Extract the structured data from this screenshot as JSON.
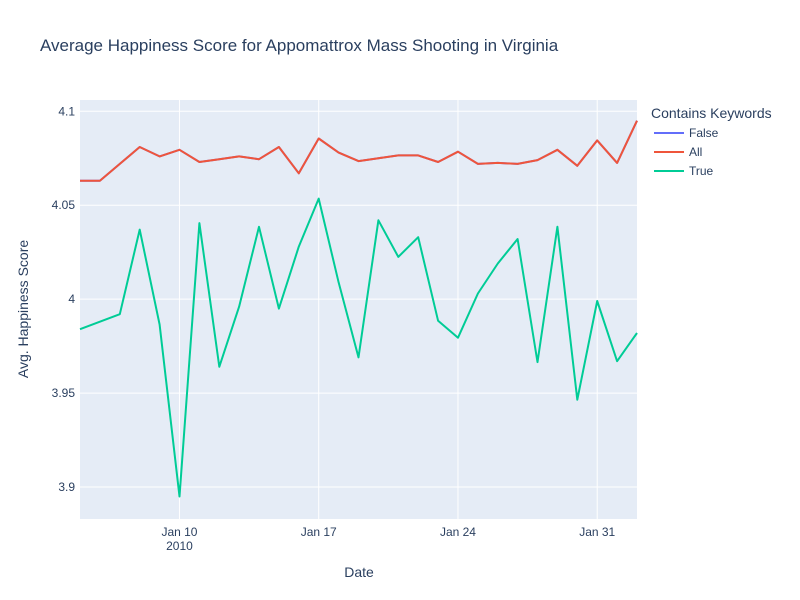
{
  "chart_data": {
    "type": "line",
    "title": "Average Happiness Score for Appomattrox Mass Shooting in Virginia",
    "xlabel": "Date",
    "ylabel": "Avg. Happiness Score",
    "ylim": [
      3.883,
      4.106
    ],
    "xlim": [
      "2010-01-05",
      "2010-02-02"
    ],
    "y_ticks": [
      3.9,
      3.95,
      4,
      4.05,
      4.1
    ],
    "y_tick_labels": [
      "3.9",
      "3.95",
      "4",
      "4.05",
      "4.1"
    ],
    "x_ticks": [
      "2010-01-10",
      "2010-01-17",
      "2010-01-24",
      "2010-01-31"
    ],
    "x_tick_labels": [
      "Jan 10",
      "Jan 17",
      "Jan 24",
      "Jan 31"
    ],
    "x_tick_sublabels": [
      "2010",
      "",
      "",
      ""
    ],
    "grid": true,
    "legend": {
      "title": "Contains Keywords",
      "placement": "top-right"
    },
    "x": [
      "2010-01-05",
      "2010-01-06",
      "2010-01-07",
      "2010-01-08",
      "2010-01-09",
      "2010-01-10",
      "2010-01-11",
      "2010-01-12",
      "2010-01-13",
      "2010-01-14",
      "2010-01-15",
      "2010-01-16",
      "2010-01-17",
      "2010-01-18",
      "2010-01-19",
      "2010-01-20",
      "2010-01-21",
      "2010-01-22",
      "2010-01-23",
      "2010-01-24",
      "2010-01-25",
      "2010-01-26",
      "2010-01-27",
      "2010-01-28",
      "2010-01-29",
      "2010-01-30",
      "2010-01-31",
      "2010-02-01",
      "2010-02-02"
    ],
    "series": [
      {
        "name": "False",
        "color": "#636efa",
        "values": [
          4.063,
          4.063,
          4.072,
          4.081,
          4.076,
          4.0795,
          4.073,
          4.0745,
          4.076,
          4.0745,
          4.081,
          4.067,
          4.0855,
          4.078,
          4.0735,
          4.075,
          4.0765,
          4.0765,
          4.073,
          4.0785,
          4.072,
          4.0725,
          4.072,
          4.074,
          4.0795,
          4.071,
          4.0845,
          4.0725,
          4.095
        ]
      },
      {
        "name": "All",
        "color": "#ef553b",
        "values": [
          4.063,
          4.063,
          4.072,
          4.081,
          4.076,
          4.0795,
          4.073,
          4.0745,
          4.076,
          4.0745,
          4.081,
          4.067,
          4.0855,
          4.078,
          4.0735,
          4.075,
          4.0765,
          4.0765,
          4.073,
          4.0785,
          4.072,
          4.0725,
          4.072,
          4.074,
          4.0795,
          4.071,
          4.0845,
          4.0725,
          4.095
        ]
      },
      {
        "name": "True",
        "color": "#00cc96",
        "values": [
          3.984,
          null,
          3.992,
          4.037,
          3.9865,
          3.895,
          4.0405,
          3.964,
          3.996,
          4.0385,
          3.995,
          4.028,
          4.0535,
          4.009,
          3.969,
          4.042,
          4.0225,
          4.033,
          3.9885,
          3.9795,
          4.003,
          4.019,
          4.032,
          3.9665,
          4.0385,
          3.9465,
          3.999,
          3.967,
          3.982
        ]
      }
    ]
  }
}
